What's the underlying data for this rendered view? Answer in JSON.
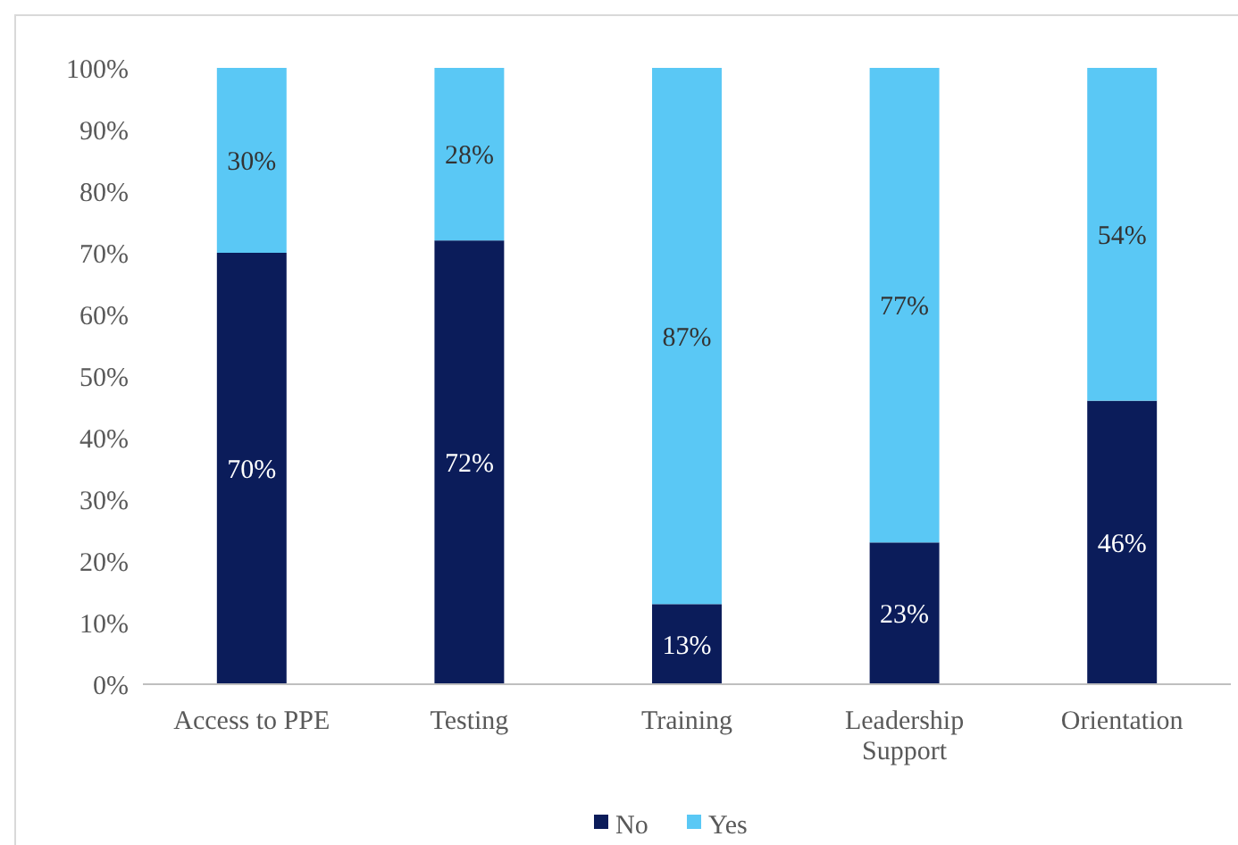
{
  "chart_data": {
    "type": "bar",
    "stacked": true,
    "categories": [
      "Access to PPE",
      "Testing",
      "Training",
      "Leadership Support",
      "Orientation"
    ],
    "series": [
      {
        "name": "No",
        "color": "#0b1c5a",
        "values": [
          70,
          72,
          13,
          23,
          46
        ],
        "value_labels": [
          "70%",
          "72%",
          "13%",
          "23%",
          "46%"
        ]
      },
      {
        "name": "Yes",
        "color": "#5ac8f5",
        "values": [
          30,
          28,
          87,
          77,
          54
        ],
        "value_labels": [
          "30%",
          "28%",
          "87%",
          "77%",
          "54%"
        ]
      }
    ],
    "ylim": [
      0,
      100
    ],
    "yticks": [
      {
        "value": 0,
        "label": "0%"
      },
      {
        "value": 10,
        "label": "10%"
      },
      {
        "value": 20,
        "label": "20%"
      },
      {
        "value": 30,
        "label": "30%"
      },
      {
        "value": 40,
        "label": "40%"
      },
      {
        "value": 50,
        "label": "50%"
      },
      {
        "value": 60,
        "label": "60%"
      },
      {
        "value": 70,
        "label": "70%"
      },
      {
        "value": 80,
        "label": "80%"
      },
      {
        "value": 90,
        "label": "90%"
      },
      {
        "value": 100,
        "label": "100%"
      }
    ],
    "legend": "bottom"
  }
}
